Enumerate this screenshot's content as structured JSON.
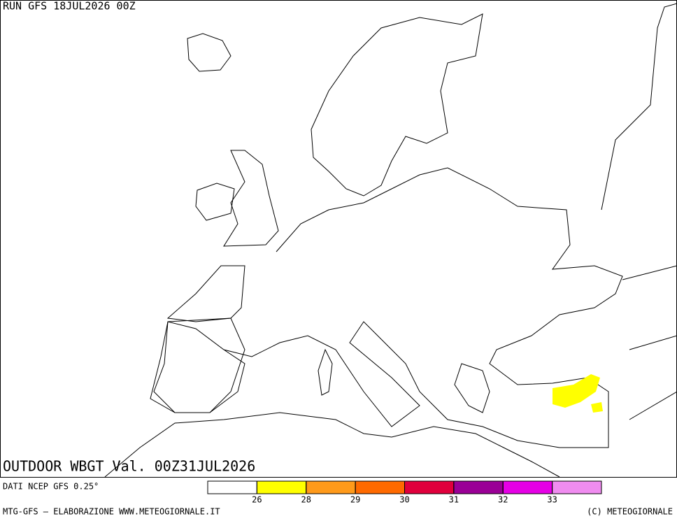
{
  "header": {
    "run": "RUN GFS 18JUL2026 00Z"
  },
  "map": {
    "title": "OUTDOOR WBGT Val. 00Z31JUL2026"
  },
  "legend": {
    "source": "DATI NCEP GFS 0.25°",
    "colors": [
      "#ffffff",
      "#ffff00",
      "#ff9a1a",
      "#ff6a00",
      "#e0003c",
      "#9a0096",
      "#e600e6",
      "#f08cf0"
    ],
    "ticks": [
      26,
      28,
      29,
      30,
      31,
      32,
      33
    ]
  },
  "footer": {
    "left": "MTG-GFS — ELABORAZIONE WWW.METEOGIORNALE.IT",
    "right": "(C) METEOGIORNALE"
  }
}
